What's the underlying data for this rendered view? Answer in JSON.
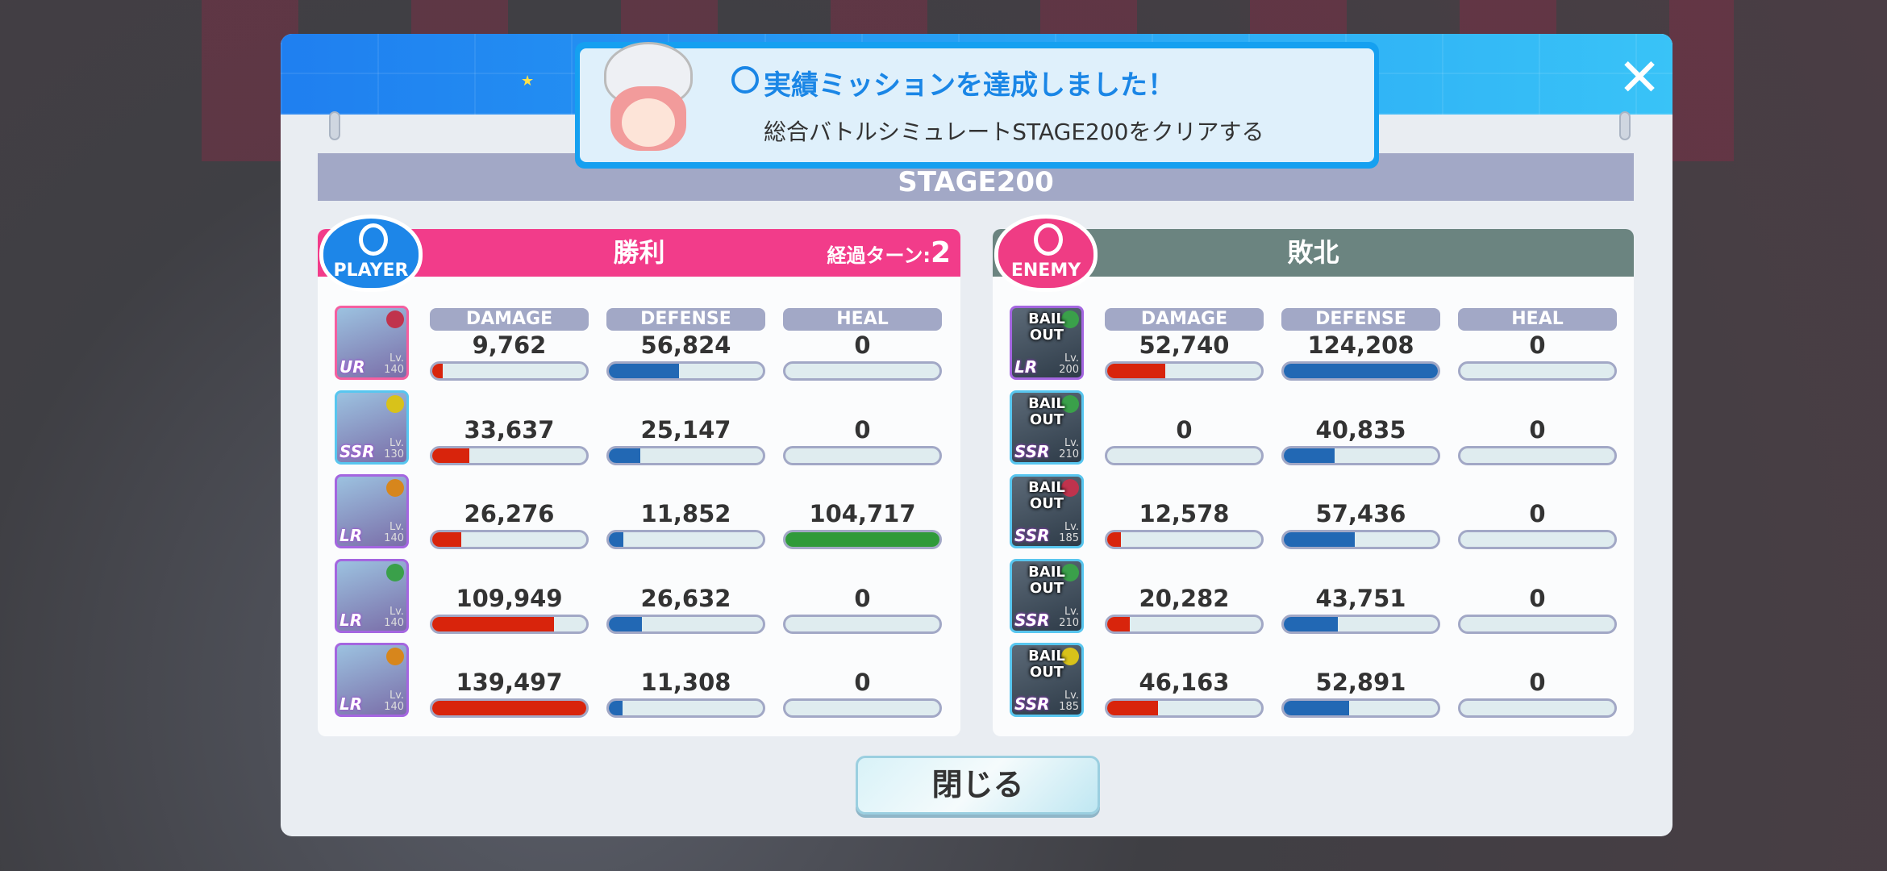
{
  "banner": {
    "title": "実績ミッションを達成しました！",
    "description": "総合バトルシミュレートSTAGE200をクリアする"
  },
  "stage_title": "STAGE200",
  "columns": [
    "DAMAGE",
    "DEFENSE",
    "HEAL"
  ],
  "colors": {
    "damage": "#d8240c",
    "defense": "#2268b4",
    "heal": "#2f9a3a",
    "player_header": "#f23c8a",
    "enemy_header": "#6b8480",
    "header_blue": "#1f7ff0"
  },
  "player": {
    "badge": "PLAYER",
    "result": "勝利",
    "turn_label": "経過ターン:",
    "turn_value": "2",
    "units": [
      {
        "rarity": "UR",
        "level_label": "Lv.",
        "level": "140",
        "damage": "9,762",
        "defense": "56,824",
        "heal": "0",
        "attr": "#c0334d"
      },
      {
        "rarity": "SSR",
        "level_label": "Lv.",
        "level": "130",
        "damage": "33,637",
        "defense": "25,147",
        "heal": "0",
        "attr": "#d8c21a"
      },
      {
        "rarity": "LR",
        "level_label": "Lv.",
        "level": "140",
        "damage": "26,276",
        "defense": "11,852",
        "heal": "104,717",
        "attr": "#d7861c"
      },
      {
        "rarity": "LR",
        "level_label": "Lv.",
        "level": "140",
        "damage": "109,949",
        "defense": "26,632",
        "heal": "0",
        "attr": "#3aa04a"
      },
      {
        "rarity": "LR",
        "level_label": "Lv.",
        "level": "140",
        "damage": "139,497",
        "defense": "11,308",
        "heal": "0",
        "attr": "#d7861c"
      }
    ]
  },
  "enemy": {
    "badge": "ENEMY",
    "result": "敗北",
    "units": [
      {
        "status": "BAIL OUT",
        "rarity": "LR",
        "level_label": "Lv.",
        "level": "200",
        "damage": "52,740",
        "defense": "124,208",
        "heal": "0",
        "attr": "#3aa04a"
      },
      {
        "status": "BAIL OUT",
        "rarity": "SSR",
        "level_label": "Lv.",
        "level": "210",
        "damage": "0",
        "defense": "40,835",
        "heal": "0",
        "attr": "#3aa04a"
      },
      {
        "status": "BAIL OUT",
        "rarity": "SSR",
        "level_label": "Lv.",
        "level": "185",
        "damage": "12,578",
        "defense": "57,436",
        "heal": "0",
        "attr": "#c0334d"
      },
      {
        "status": "BAIL OUT",
        "rarity": "SSR",
        "level_label": "Lv.",
        "level": "210",
        "damage": "20,282",
        "defense": "43,751",
        "heal": "0",
        "attr": "#3aa04a"
      },
      {
        "status": "BAIL OUT",
        "rarity": "SSR",
        "level_label": "Lv.",
        "level": "185",
        "damage": "46,163",
        "defense": "52,891",
        "heal": "0",
        "attr": "#d8c21a"
      }
    ]
  },
  "close_button": "閉じる",
  "close_icon": "close-x-icon"
}
